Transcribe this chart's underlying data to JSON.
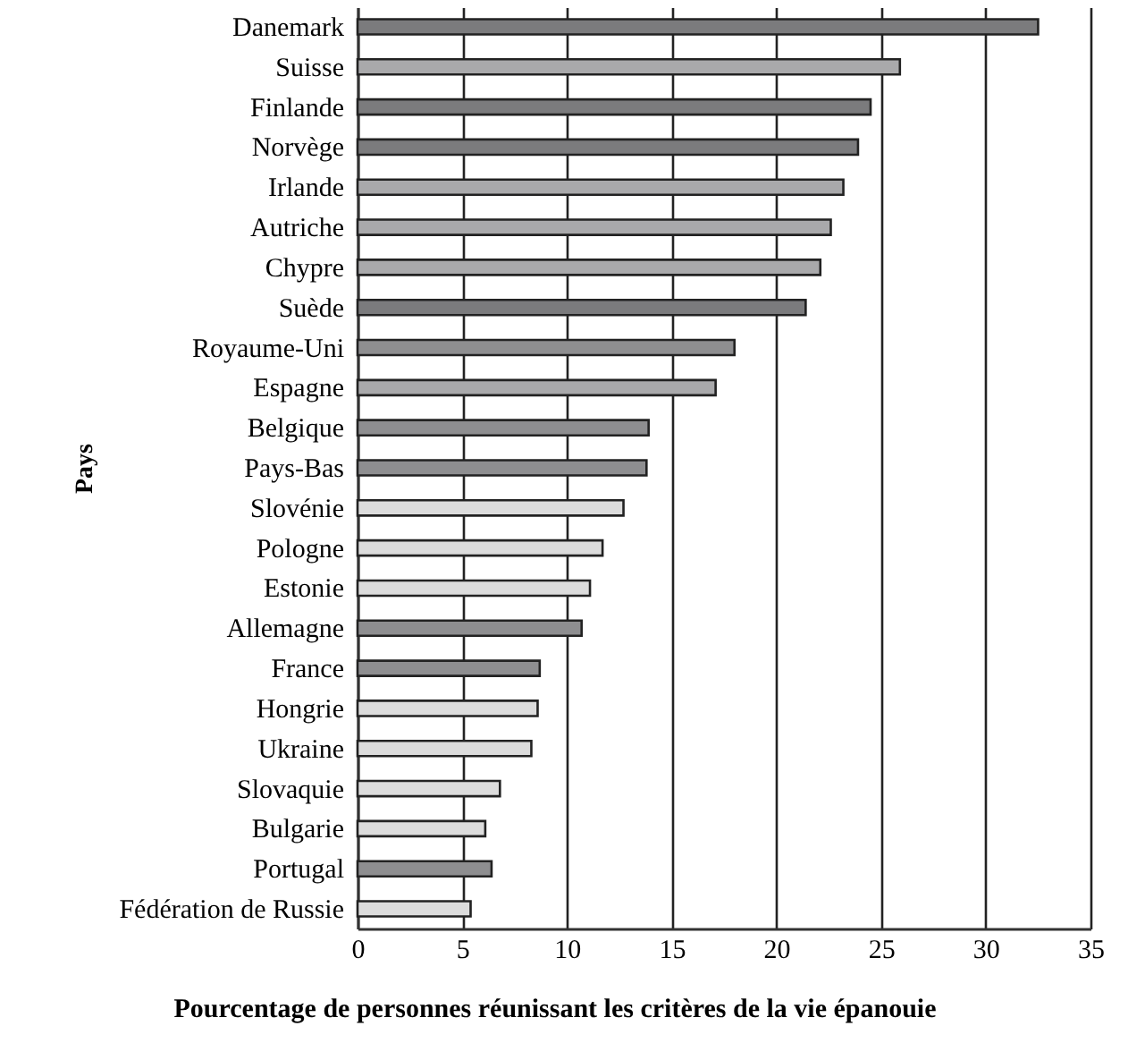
{
  "chart_data": {
    "type": "bar",
    "orientation": "horizontal",
    "xlabel": "Pourcentage de personnes réunissant les critères de la vie épanouie",
    "ylabel": "Pays",
    "categories": [
      "Danemark",
      "Suisse",
      "Finlande",
      "Norvège",
      "Irlande",
      "Autriche",
      "Chypre",
      "Suède",
      "Royaume-Uni",
      "Espagne",
      "Belgique",
      "Pays-Bas",
      "Slovénie",
      "Pologne",
      "Estonie",
      "Allemagne",
      "France",
      "Hongrie",
      "Ukraine",
      "Slovaquie",
      "Bulgarie",
      "Portugal",
      "Fédération de Russie"
    ],
    "values": [
      32.5,
      25.9,
      24.5,
      23.9,
      23.2,
      22.6,
      22.1,
      21.4,
      18.0,
      17.1,
      13.9,
      13.8,
      12.7,
      11.7,
      11.1,
      10.7,
      8.7,
      8.6,
      8.3,
      6.8,
      6.1,
      6.4,
      5.4
    ],
    "colors": [
      "#7b7b7d",
      "#a9a9ab",
      "#7b7b7d",
      "#7b7b7d",
      "#a9a9ab",
      "#a9a9ab",
      "#a9a9ab",
      "#7b7b7d",
      "#8e8e90",
      "#a9a9ab",
      "#8e8e90",
      "#8e8e90",
      "#dcdcdc",
      "#dcdcdc",
      "#dcdcdc",
      "#8e8e90",
      "#8e8e90",
      "#dcdcdc",
      "#dcdcdc",
      "#dcdcdc",
      "#dcdcdc",
      "#8e8e90",
      "#dcdcdc"
    ],
    "xlim": [
      0,
      35
    ],
    "xticks": [
      0,
      5,
      10,
      15,
      20,
      25,
      30,
      35
    ],
    "grid": "x"
  }
}
